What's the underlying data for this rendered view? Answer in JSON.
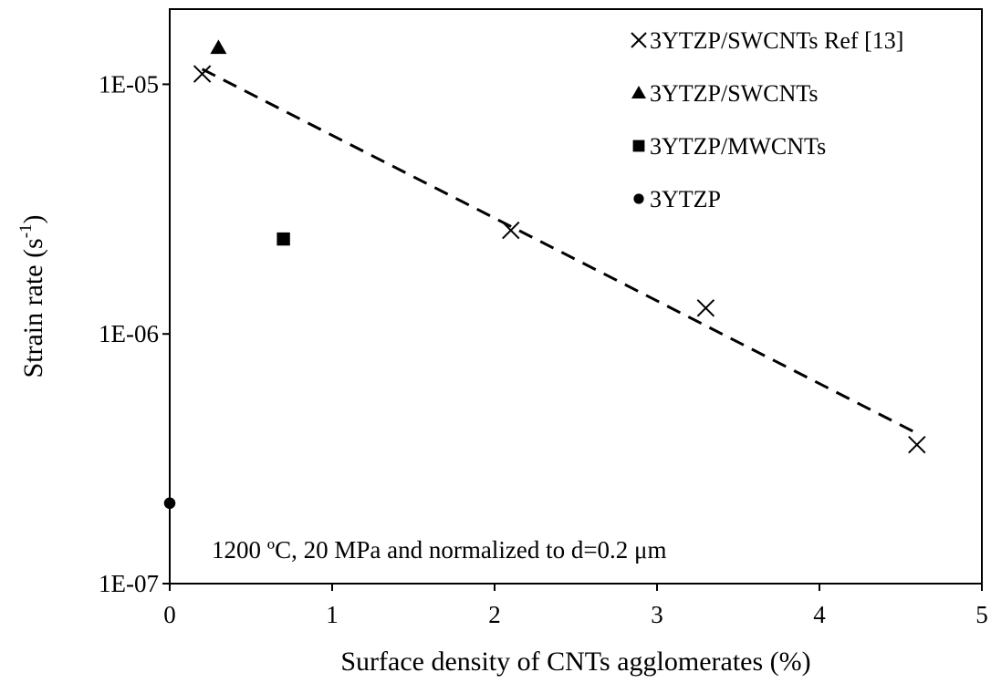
{
  "chart_data": {
    "type": "scatter",
    "title": "",
    "xlabel": "Surface density of CNTs agglomerates (%)",
    "ylabel": {
      "base": "Strain rate (s",
      "sup": "-1",
      "tail": ")"
    },
    "xlim": [
      0,
      5
    ],
    "ylim": [
      1e-07,
      2e-05
    ],
    "y_scale": "log",
    "x_ticks": [
      {
        "value": 0,
        "label": "0"
      },
      {
        "value": 1,
        "label": "1"
      },
      {
        "value": 2,
        "label": "2"
      },
      {
        "value": 3,
        "label": "3"
      },
      {
        "value": 4,
        "label": "4"
      },
      {
        "value": 5,
        "label": "5"
      }
    ],
    "y_ticks": [
      {
        "value": 1e-07,
        "label": "1E-07"
      },
      {
        "value": 1e-06,
        "label": "1E-06"
      },
      {
        "value": 1e-05,
        "label": "1E-05"
      }
    ],
    "grid": false,
    "legend_position": "top-right",
    "annotation": "1200 ºC, 20 MPa and normalized to d=0.2 μm",
    "series": [
      {
        "name": "3YTZP/SWCNTs Ref [13]",
        "marker": "x",
        "color": "#000000",
        "points": [
          {
            "x": 0.2,
            "y": 1.1e-05
          },
          {
            "x": 2.1,
            "y": 2.6e-06
          },
          {
            "x": 3.3,
            "y": 1.27e-06
          },
          {
            "x": 4.6,
            "y": 3.6e-07
          }
        ]
      },
      {
        "name": "3YTZP/SWCNTs",
        "marker": "triangle",
        "color": "#000000",
        "points": [
          {
            "x": 0.3,
            "y": 1.4e-05
          }
        ]
      },
      {
        "name": "3YTZP/MWCNTs",
        "marker": "square",
        "color": "#000000",
        "points": [
          {
            "x": 0.7,
            "y": 2.4e-06
          }
        ]
      },
      {
        "name": "3YTZP",
        "marker": "circle",
        "color": "#000000",
        "points": [
          {
            "x": 0.0,
            "y": 2.1e-07
          }
        ]
      }
    ],
    "trendline": {
      "style": "dashed",
      "color": "#000000",
      "points": [
        {
          "x": 0.2,
          "y": 1.15e-05
        },
        {
          "x": 4.6,
          "y": 4e-07
        }
      ]
    }
  }
}
